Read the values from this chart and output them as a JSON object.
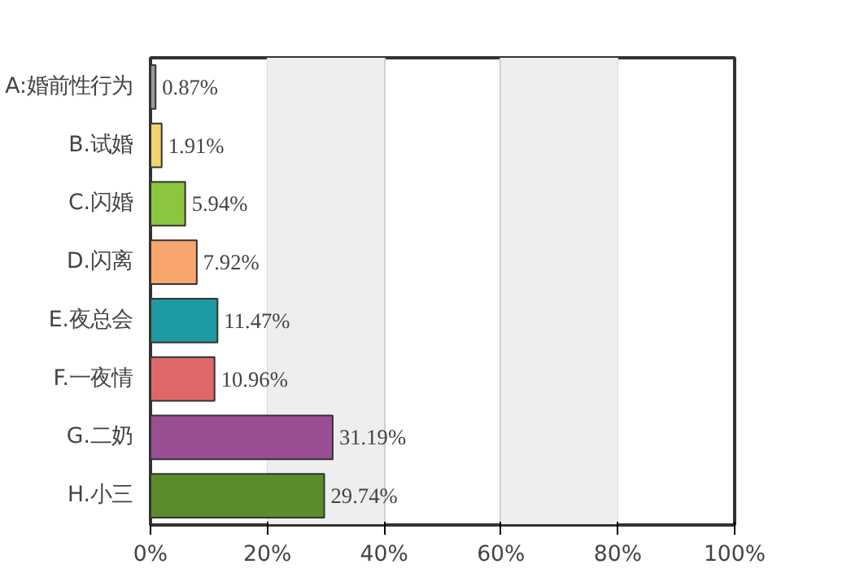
{
  "chart_data": {
    "type": "bar",
    "orientation": "horizontal",
    "categories": [
      "A:婚前性行为",
      "B.试婚",
      "C.闪婚",
      "D.闪离",
      "E.夜总会",
      "F.一夜情",
      "G.二奶",
      "H.小三"
    ],
    "values": [
      0.87,
      1.91,
      5.94,
      7.92,
      11.47,
      10.96,
      31.19,
      29.74
    ],
    "colors": [
      "#9a9a9a",
      "#f2d46e",
      "#8cc63f",
      "#f8a66e",
      "#1e9aa2",
      "#de6868",
      "#9a4f94",
      "#5b8c2c"
    ],
    "value_labels": [
      "0.87%",
      "1.91%",
      "5.94%",
      "7.92%",
      "11.47%",
      "10.96%",
      "31.19%",
      "29.74%"
    ],
    "xlim": [
      0,
      100
    ],
    "xticks": [
      {
        "value": 0,
        "label": "0%"
      },
      {
        "value": 20,
        "label": "20%"
      },
      {
        "value": 40,
        "label": "40%"
      },
      {
        "value": 60,
        "label": "60%"
      },
      {
        "value": 80,
        "label": "80%"
      },
      {
        "value": 100,
        "label": "100%"
      }
    ],
    "bands": [
      {
        "axis": "x",
        "from": 20,
        "to": 40,
        "color": "#eeeeee"
      },
      {
        "axis": "x",
        "from": 60,
        "to": 80,
        "color": "#eeeeee"
      }
    ],
    "grid": "x"
  }
}
